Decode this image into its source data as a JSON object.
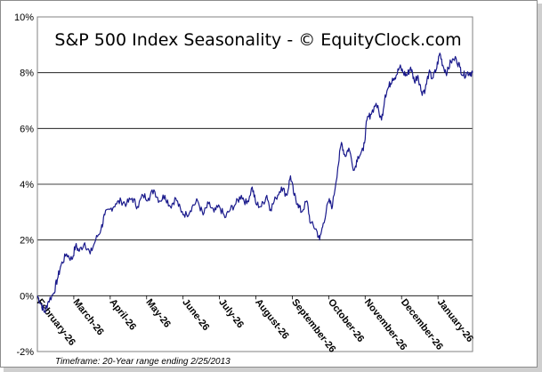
{
  "chart_data": {
    "type": "line",
    "title": "S&P 500 Index Seasonality - © EquityClock.com",
    "xlabel": "",
    "ylabel": "",
    "ylim": [
      -2,
      10
    ],
    "y_ticks": [
      "-2%",
      "0%",
      "2%",
      "4%",
      "6%",
      "8%",
      "10%"
    ],
    "y_tick_values": [
      -2,
      0,
      2,
      4,
      6,
      8,
      10
    ],
    "grid": true,
    "x_ticks": [
      "February-26",
      "March-26",
      "April-26",
      "May-26",
      "June-26",
      "July-26",
      "August-26",
      "September-26",
      "October-26",
      "November-26",
      "December-26",
      "January-26"
    ],
    "x_tick_values": [
      0,
      1,
      2,
      3,
      4,
      5,
      6,
      7,
      8,
      9,
      10,
      11
    ],
    "xlim": [
      0,
      11.95
    ],
    "footnote": "Timeframe: 20-Year range ending 2/25/2013",
    "series": [
      {
        "name": "S&P 500 Index Seasonality",
        "color": "#1a1a8c",
        "x": [
          0,
          0.1,
          0.2,
          0.3,
          0.45,
          0.55,
          0.65,
          0.8,
          0.95,
          1.05,
          1.15,
          1.3,
          1.45,
          1.6,
          1.75,
          1.85,
          2.0,
          2.15,
          2.3,
          2.45,
          2.6,
          2.75,
          2.9,
          3.05,
          3.2,
          3.35,
          3.5,
          3.65,
          3.8,
          3.95,
          4.1,
          4.25,
          4.4,
          4.55,
          4.7,
          4.85,
          5.0,
          5.15,
          5.3,
          5.45,
          5.6,
          5.75,
          5.9,
          6.0,
          6.15,
          6.3,
          6.4,
          6.55,
          6.7,
          6.85,
          6.95,
          7.05,
          7.15,
          7.25,
          7.4,
          7.5,
          7.65,
          7.75,
          7.85,
          8.0,
          8.1,
          8.25,
          8.35,
          8.45,
          8.55,
          8.7,
          8.8,
          8.95,
          9.05,
          9.15,
          9.3,
          9.45,
          9.55,
          9.65,
          9.75,
          9.85,
          9.95,
          10.05,
          10.15,
          10.25,
          10.35,
          10.45,
          10.55,
          10.65,
          10.75,
          10.85,
          10.95,
          11.05,
          11.15,
          11.25,
          11.35,
          11.5,
          11.6,
          11.7,
          11.8,
          11.9,
          11.95
        ],
        "values": [
          0.0,
          -0.3,
          -0.6,
          -0.2,
          0.1,
          0.6,
          1.1,
          1.5,
          1.3,
          1.8,
          1.6,
          1.9,
          1.5,
          2.0,
          2.4,
          2.9,
          3.1,
          3.3,
          3.4,
          3.3,
          3.5,
          3.2,
          3.6,
          3.5,
          3.8,
          3.4,
          3.6,
          3.2,
          3.5,
          3.0,
          2.9,
          3.2,
          3.4,
          2.9,
          3.3,
          3.0,
          3.2,
          2.8,
          3.1,
          3.3,
          3.6,
          3.3,
          3.9,
          3.3,
          3.2,
          3.6,
          3.1,
          3.5,
          3.9,
          3.6,
          4.3,
          3.6,
          3.3,
          3.0,
          3.4,
          2.6,
          2.4,
          2.0,
          2.6,
          3.4,
          3.2,
          4.6,
          5.5,
          5.0,
          5.3,
          4.5,
          5.0,
          5.2,
          6.3,
          6.5,
          6.9,
          6.3,
          7.2,
          7.5,
          7.8,
          7.9,
          8.2,
          8.0,
          7.9,
          8.2,
          7.7,
          7.9,
          7.3,
          7.4,
          8.0,
          7.8,
          8.1,
          8.7,
          8.2,
          8.0,
          8.4,
          8.5,
          8.2,
          7.9,
          8.0,
          8.0,
          8.0
        ]
      }
    ]
  }
}
